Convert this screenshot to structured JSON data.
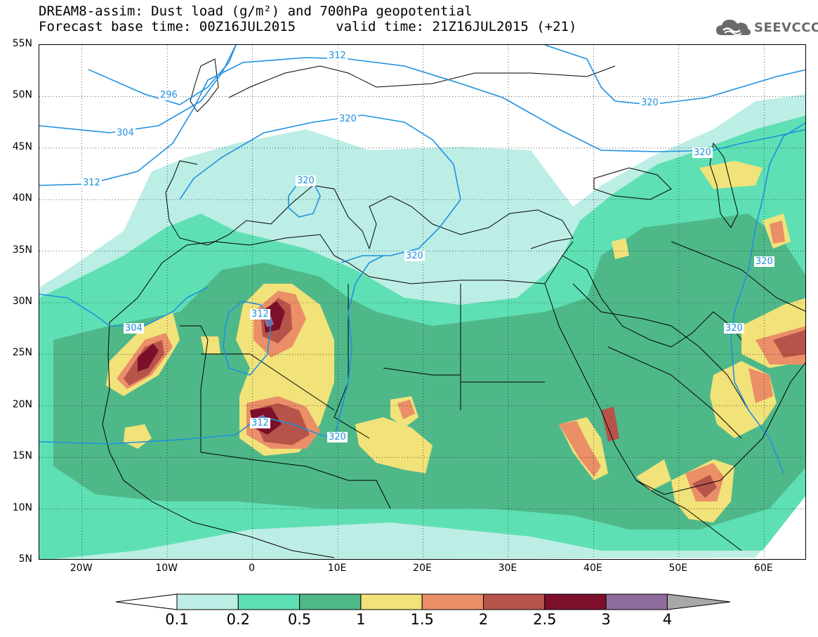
{
  "header": {
    "line1": "DREAM8-assim: Dust load (g/m²) and 700hPa geopotential",
    "line2": "Forecast base time: 00Z16JUL2015     valid time: 21Z16JUL2015 (+21)"
  },
  "logo": {
    "text": "SEEVCCC",
    "icon": "cloud-icon",
    "color": "#6b6b6b"
  },
  "map": {
    "region": "North Africa, Europe, Middle East",
    "lon_range": [
      -25,
      65
    ],
    "lat_range": [
      5,
      55
    ],
    "lat_labels": [
      "55N",
      "50N",
      "45N",
      "40N",
      "35N",
      "30N",
      "25N",
      "20N",
      "15N",
      "10N",
      "5N"
    ],
    "lon_labels": [
      "20W",
      "10W",
      "0",
      "10E",
      "20E",
      "30E",
      "40E",
      "50E",
      "60E"
    ],
    "contour_labels": [
      "296",
      "304",
      "312",
      "320",
      "312",
      "320",
      "320",
      "304",
      "312",
      "320",
      "320",
      "320",
      "320",
      "312",
      "320"
    ],
    "contour_color": "#1e90e0",
    "border_color": "#000000"
  },
  "colorbar": {
    "labels": [
      "0.1",
      "0.2",
      "0.5",
      "1",
      "1.5",
      "2",
      "2.5",
      "3",
      "4"
    ],
    "colors": [
      "#bdeee6",
      "#5fe0b4",
      "#4fb889",
      "#f1e27a",
      "#ea8f67",
      "#b7544a",
      "#7d0f2a",
      "#8d6c9c",
      "#a8a8a8"
    ],
    "under_color": "#ffffff"
  }
}
